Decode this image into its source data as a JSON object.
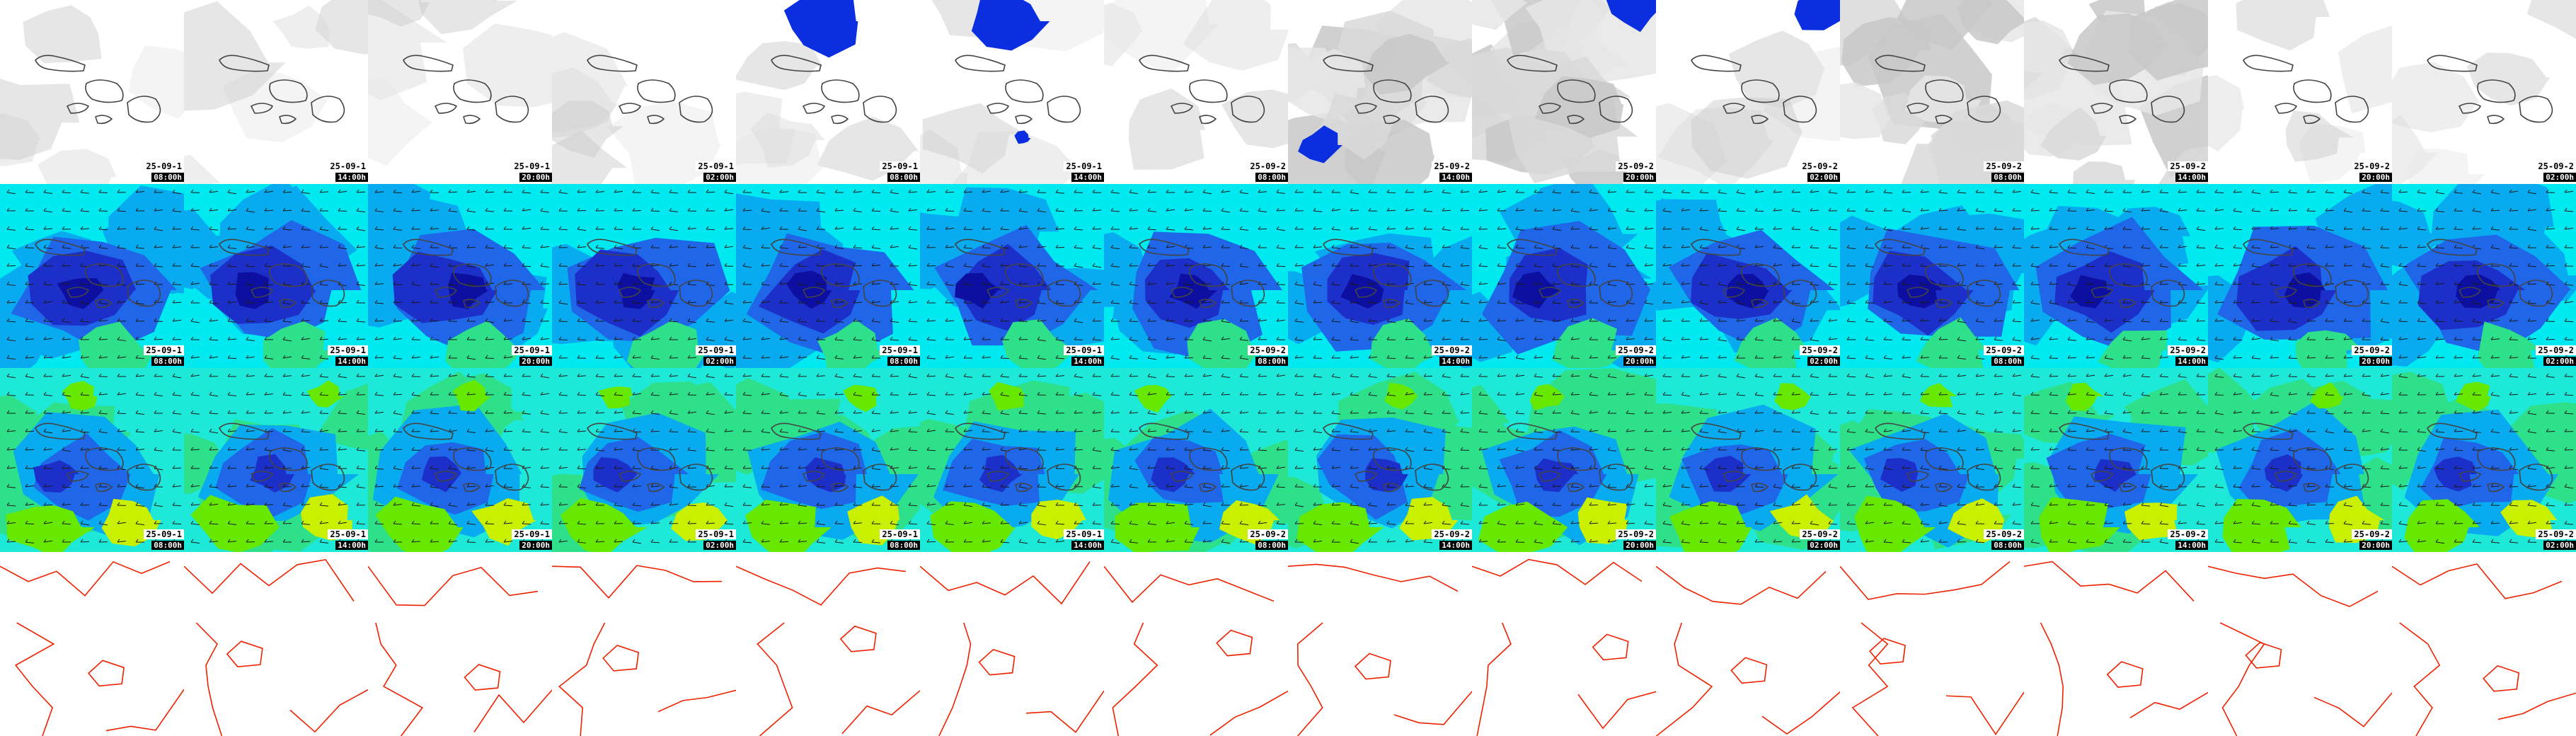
{
  "colors": {
    "cloud_blue": "#0b2fe0",
    "wind_cyan": "#00e8f0",
    "wind_sky": "#08aaf0",
    "wind_blue": "#1f66e8",
    "wind_dark": "#1c2fc8",
    "wind_navy": "#0c0fa0",
    "wind_green": "#2ee08a",
    "wind_lime": "#66e800",
    "wind_yellow": "#c8f000",
    "isobar_red": "#ee2200",
    "coast_gray": "#444444"
  },
  "rows": [
    {
      "id": "cloud",
      "icon": "cloud-cover-map"
    },
    {
      "id": "wind1",
      "icon": "wind-speed-map"
    },
    {
      "id": "wind2",
      "icon": "wind-gust-map"
    },
    {
      "id": "pressure",
      "icon": "pressure-isobar-map"
    }
  ],
  "frames": [
    {
      "date": "25-09-1",
      "hour": "08:00h"
    },
    {
      "date": "25-09-1",
      "hour": "14:00h"
    },
    {
      "date": "25-09-1",
      "hour": "20:00h"
    },
    {
      "date": "25-09-1",
      "hour": "02:00h"
    },
    {
      "date": "25-09-1",
      "hour": "08:00h"
    },
    {
      "date": "25-09-1",
      "hour": "14:00h"
    },
    {
      "date": "25-09-2",
      "hour": "08:00h"
    },
    {
      "date": "25-09-2",
      "hour": "14:00h"
    },
    {
      "date": "25-09-2",
      "hour": "20:00h"
    },
    {
      "date": "25-09-2",
      "hour": "02:00h"
    },
    {
      "date": "25-09-2",
      "hour": "08:00h"
    },
    {
      "date": "25-09-2",
      "hour": "14:00h"
    },
    {
      "date": "25-09-2",
      "hour": "20:00h"
    },
    {
      "date": "25-09-2",
      "hour": "02:00h"
    }
  ]
}
